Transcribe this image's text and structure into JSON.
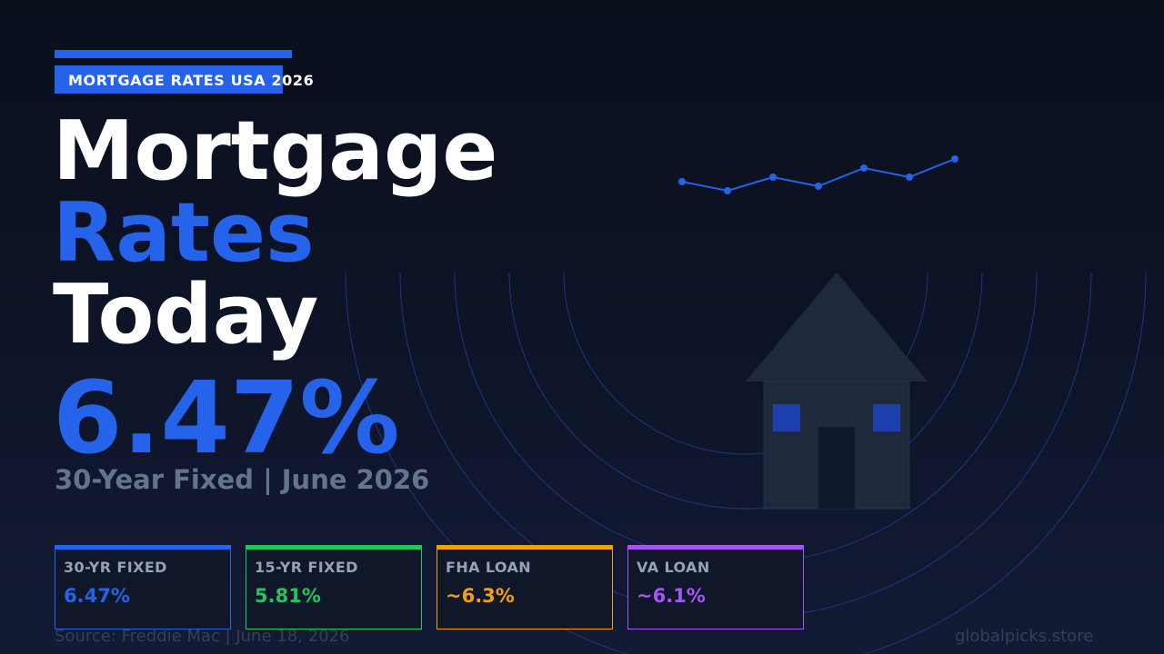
{
  "header": {
    "tag": "MORTGAGE RATES USA 2026",
    "headline_line1": "Mortgage",
    "headline_line2": "Rates",
    "headline_line3": "Today",
    "main_rate": "6.47%",
    "subline": "30-Year Fixed | June 2026"
  },
  "cards": [
    {
      "label": "30-YR FIXED",
      "value": "6.47%",
      "color": "#2563eb"
    },
    {
      "label": "15-YR FIXED",
      "value": "5.81%",
      "color": "#22c55e"
    },
    {
      "label": "FHA LOAN",
      "value": "~6.3%",
      "color": "#f59e0b"
    },
    {
      "label": "VA LOAN",
      "value": "~6.1%",
      "color": "#a855f7"
    }
  ],
  "footer": {
    "source": "Source: Freddie Mac | June 18, 2026",
    "site": "globalpicks.store"
  },
  "colors": {
    "accent": "#2563eb",
    "background": "#0d1427",
    "muted_text": "#64748b"
  },
  "icons": [
    "house-icon",
    "trend-line-icon"
  ]
}
